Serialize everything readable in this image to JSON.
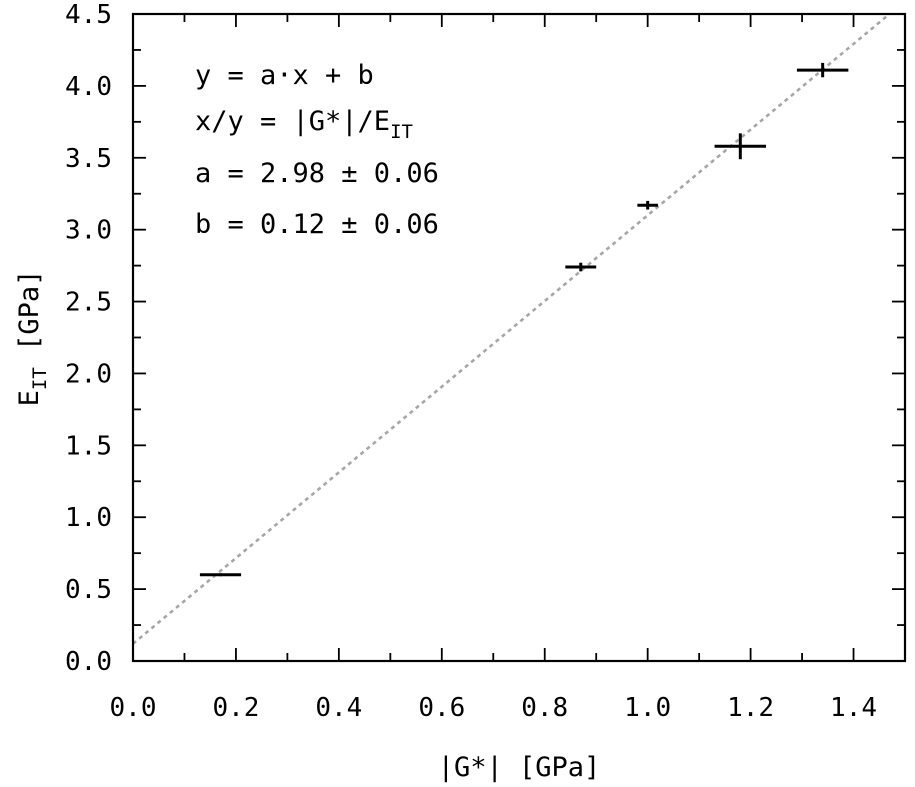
{
  "chart_data": {
    "type": "scatter",
    "xlabel": "|G*| [GPa]",
    "ylabel_main": "E",
    "ylabel_sub": "IT",
    "ylabel_unit": " [GPa]",
    "xlim": [
      0.0,
      1.5
    ],
    "ylim": [
      0.0,
      4.5
    ],
    "xticks": [
      "0.0",
      "0.2",
      "0.4",
      "0.6",
      "0.8",
      "1.0",
      "1.2",
      "1.4"
    ],
    "xtick_values": [
      0.0,
      0.2,
      0.4,
      0.6,
      0.8,
      1.0,
      1.2,
      1.4
    ],
    "yticks": [
      "0.0",
      "0.5",
      "1.0",
      "1.5",
      "2.0",
      "2.5",
      "3.0",
      "3.5",
      "4.0",
      "4.5"
    ],
    "ytick_values": [
      0.0,
      0.5,
      1.0,
      1.5,
      2.0,
      2.5,
      3.0,
      3.5,
      4.0,
      4.5
    ],
    "grid": false,
    "points": [
      {
        "x": 0.17,
        "y": 0.6,
        "xerr": 0.04,
        "yerr": 0.01
      },
      {
        "x": 0.87,
        "y": 2.74,
        "xerr": 0.03,
        "yerr": 0.03
      },
      {
        "x": 1.0,
        "y": 3.17,
        "xerr": 0.02,
        "yerr": 0.03
      },
      {
        "x": 1.18,
        "y": 3.58,
        "xerr": 0.05,
        "yerr": 0.09
      },
      {
        "x": 1.34,
        "y": 4.11,
        "xerr": 0.05,
        "yerr": 0.05
      }
    ],
    "fit": {
      "a": 2.98,
      "b": 0.12,
      "style": "dotted",
      "color": "#a6a6a6"
    },
    "annotations": {
      "line1": "y = a·x + b",
      "line2_prefix": "x/y = |G*|/E",
      "line2_sub": "IT",
      "line3": "a = 2.98 ± 0.06",
      "line4": "b = 0.12 ± 0.06"
    }
  }
}
